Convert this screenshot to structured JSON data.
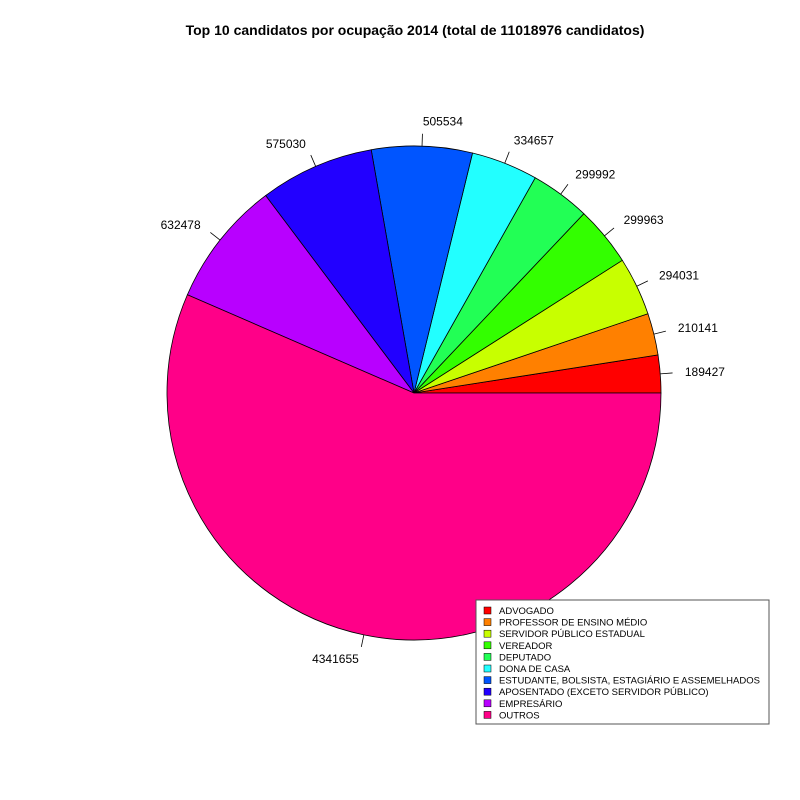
{
  "chart_data": {
    "type": "pie",
    "title": "Top 10 candidatos por ocupação 2014 (total de 11018976 candidatos)",
    "categories": [
      "ADVOGADO",
      "PROFESSOR DE ENSINO MÉDIO",
      "SERVIDOR PÚBLICO ESTADUAL",
      "VEREADOR",
      "DEPUTADO",
      "DONA DE CASA",
      "ESTUDANTE, BOLSISTA, ESTAGIÁRIO E ASSEMELHADOS",
      "APOSENTADO (EXCETO SERVIDOR PÚBLICO)",
      "EMPRESÁRIO",
      "OUTROS"
    ],
    "values": [
      189427,
      210141,
      294031,
      299963,
      299992,
      334657,
      505534,
      575030,
      632478,
      4341655
    ],
    "value_labels": [
      "189427",
      "210141",
      "294031",
      "299963",
      "299992",
      "334657",
      "505534",
      "575030",
      "632478",
      "4341655"
    ],
    "colors": [
      "#ff0000",
      "#ff8000",
      "#c8ff00",
      "#33ff00",
      "#22ff55",
      "#22ffff",
      "#0055ff",
      "#2200ff",
      "#b800ff",
      "#ff0088"
    ],
    "direction": "counterclockwise",
    "start_angle_deg": 0,
    "legend_position": "bottom-right"
  }
}
